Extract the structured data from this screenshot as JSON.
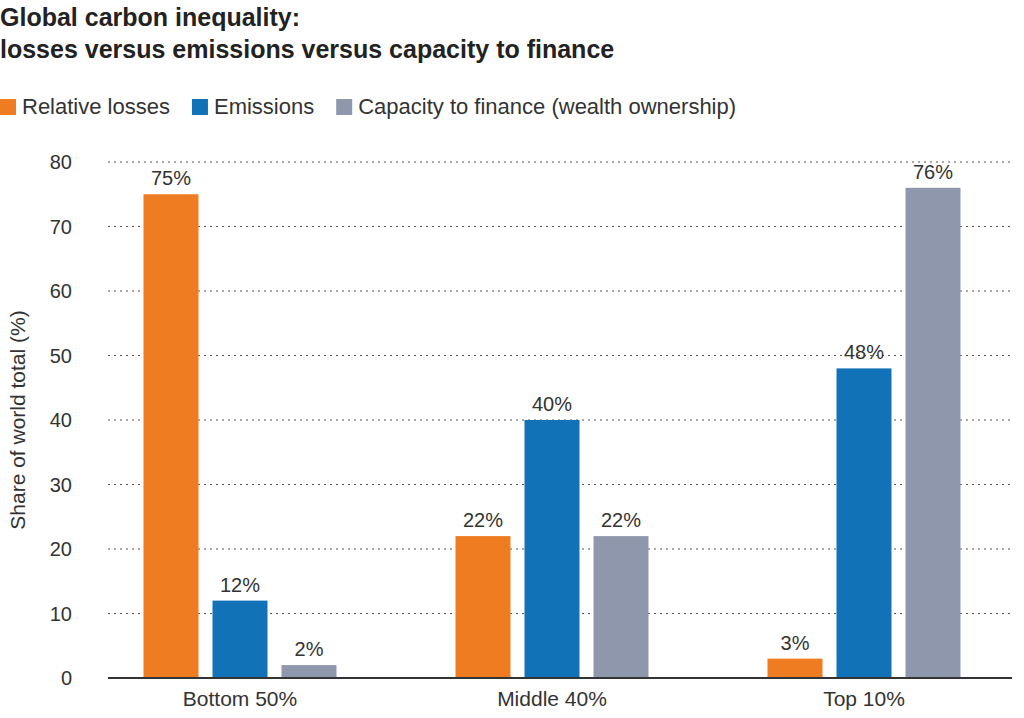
{
  "chart_data": {
    "type": "bar",
    "title": [
      "Global carbon inequality:",
      "losses versus emissions versus capacity to finance"
    ],
    "y_label": "Share of world total (%)",
    "categories": [
      "Bottom 50%",
      "Middle 40%",
      "Top 10%"
    ],
    "series": [
      {
        "name": "Relative losses",
        "color": "#f07c22",
        "values": [
          75,
          22,
          3
        ],
        "value_labels": [
          "75%",
          "22%",
          "3%"
        ]
      },
      {
        "name": "Emissions",
        "color": "#1272b8",
        "values": [
          12,
          40,
          48
        ],
        "value_labels": [
          "12%",
          "40%",
          "48%"
        ]
      },
      {
        "name": "Capacity to finance (wealth ownership)",
        "color": "#8e97ab",
        "values": [
          2,
          22,
          76
        ],
        "value_labels": [
          "2%",
          "22%",
          "76%"
        ]
      }
    ],
    "ylim": [
      0,
      80
    ],
    "yticks": [
      0,
      10,
      20,
      30,
      40,
      50,
      60,
      70,
      80
    ],
    "grid": true,
    "legend": "top-left",
    "data_labels": true
  }
}
